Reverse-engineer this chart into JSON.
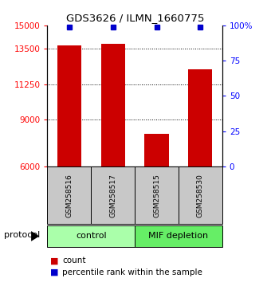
{
  "title": "GDS3626 / ILMN_1660775",
  "samples": [
    "GSM258516",
    "GSM258517",
    "GSM258515",
    "GSM258530"
  ],
  "counts": [
    13700,
    13800,
    8100,
    12200
  ],
  "percentile_ranks": [
    99,
    99,
    99,
    99
  ],
  "y_min": 6000,
  "y_max": 15000,
  "y_ticks": [
    6000,
    9000,
    11250,
    13500,
    15000
  ],
  "y2_ticks": [
    0,
    25,
    50,
    75,
    100
  ],
  "y2_tick_labels": [
    "0",
    "25",
    "50",
    "75",
    "100%"
  ],
  "bar_color": "#cc0000",
  "dot_color": "#0000cc",
  "sample_box_color": "#c8c8c8",
  "control_color": "#aaffaa",
  "mif_color": "#66ee66",
  "protocol_label": "protocol",
  "group_labels": [
    "control",
    "MIF depletion"
  ],
  "legend_count_label": "count",
  "legend_pct_label": "percentile rank within the sample"
}
